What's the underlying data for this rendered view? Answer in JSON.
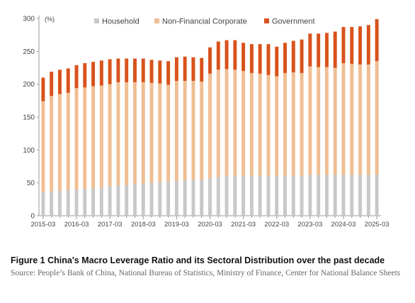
{
  "chart_data": {
    "type": "bar",
    "stacked": true,
    "title": "",
    "ylabel": "(%)",
    "xlabel": "",
    "ylim": [
      0,
      300
    ],
    "yticks": [
      0,
      50,
      100,
      150,
      200,
      250,
      300
    ],
    "xtick_labels": [
      "2015-03",
      "2016-03",
      "2017-03",
      "2018-03",
      "2019-03",
      "2020-03",
      "2021-03",
      "2022-03",
      "2023-03",
      "2024-03",
      "2025-03"
    ],
    "legend_position": "top",
    "grid": false,
    "categories": [
      "2015Q1",
      "2015Q2",
      "2015Q3",
      "2015Q4",
      "2016Q1",
      "2016Q2",
      "2016Q3",
      "2016Q4",
      "2017Q1",
      "2017Q2",
      "2017Q3",
      "2017Q4",
      "2018Q1",
      "2018Q2",
      "2018Q3",
      "2018Q4",
      "2019Q1",
      "2019Q2",
      "2019Q3",
      "2019Q4",
      "2020Q1",
      "2020Q2",
      "2020Q3",
      "2020Q4",
      "2021Q1",
      "2021Q2",
      "2021Q3",
      "2021Q4",
      "2022Q1",
      "2022Q2",
      "2022Q3",
      "2022Q4",
      "2023Q1",
      "2023Q2",
      "2023Q3",
      "2023Q4",
      "2024Q1",
      "2024Q2",
      "2024Q3",
      "2024Q4",
      "2025Q1"
    ],
    "series": [
      {
        "name": "Household",
        "color": "#c8c8c8",
        "values": [
          36,
          37,
          38,
          39,
          40,
          41,
          42,
          43,
          45,
          46,
          47,
          48,
          49,
          50,
          51,
          52,
          53,
          54,
          55,
          55,
          57,
          59,
          60,
          61,
          61,
          61,
          61,
          61,
          61,
          61,
          61,
          61,
          62,
          62,
          62,
          62,
          62,
          62,
          62,
          62,
          62
        ]
      },
      {
        "name": "Non-Financial Corporate",
        "color": "#f0be93",
        "values": [
          138,
          145,
          147,
          148,
          154,
          154,
          155,
          155,
          155,
          157,
          156,
          155,
          154,
          152,
          150,
          147,
          152,
          151,
          150,
          149,
          159,
          163,
          163,
          161,
          159,
          156,
          155,
          153,
          151,
          156,
          157,
          156,
          165,
          164,
          164,
          163,
          170,
          169,
          168,
          168,
          173
        ]
      },
      {
        "name": "Government",
        "color": "#d9521c",
        "values": [
          36,
          37,
          37,
          37,
          35,
          37,
          37,
          38,
          38,
          36,
          36,
          36,
          36,
          35,
          35,
          36,
          36,
          37,
          36,
          36,
          40,
          43,
          44,
          45,
          43,
          44,
          45,
          47,
          45,
          46,
          48,
          51,
          50,
          51,
          52,
          55,
          55,
          56,
          58,
          60,
          64
        ]
      }
    ]
  },
  "caption": {
    "title": "Figure 1 China's Macro Leverage Ratio and its Sectoral Distribution over the past decade",
    "source": "Source: People’s Bank of China, National Bureau of Statistics, Ministry of Finance, Center for National Balance Sheets"
  }
}
